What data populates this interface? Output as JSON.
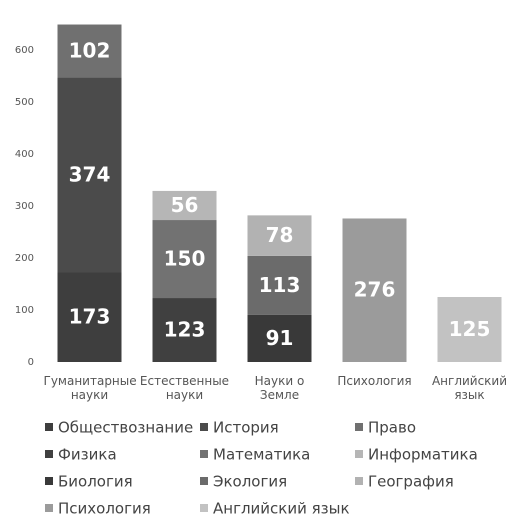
{
  "chart_data": {
    "type": "stacked_bar",
    "categories": [
      "Гуманитарные науки",
      "Естественные науки",
      "Науки о Земле",
      "Психология",
      "Английский язык"
    ],
    "series": [
      {
        "name": "Обществознание",
        "color": "#3e3e3e",
        "values": [
          173,
          null,
          null,
          null,
          null
        ]
      },
      {
        "name": "История",
        "color": "#4b4b4b",
        "values": [
          374,
          null,
          null,
          null,
          null
        ]
      },
      {
        "name": "Право",
        "color": "#707070",
        "values": [
          102,
          null,
          null,
          null,
          null
        ]
      },
      {
        "name": "Физика",
        "color": "#404040",
        "values": [
          null,
          123,
          null,
          null,
          null
        ]
      },
      {
        "name": "Математика",
        "color": "#727272",
        "values": [
          null,
          150,
          null,
          null,
          null
        ]
      },
      {
        "name": "Информатика",
        "color": "#b6b6b6",
        "values": [
          null,
          56,
          null,
          null,
          null
        ]
      },
      {
        "name": "Биология",
        "color": "#393939",
        "values": [
          null,
          null,
          91,
          null,
          null
        ]
      },
      {
        "name": "Экология",
        "color": "#6b6b6b",
        "values": [
          null,
          null,
          113,
          null,
          null
        ]
      },
      {
        "name": "География",
        "color": "#b2b2b2",
        "values": [
          null,
          null,
          78,
          null,
          null
        ]
      },
      {
        "name": "Психология",
        "color": "#9b9b9b",
        "values": [
          null,
          null,
          null,
          276,
          null
        ]
      },
      {
        "name": "Английский язык",
        "color": "#c2c2c2",
        "values": [
          null,
          null,
          null,
          null,
          125
        ]
      }
    ],
    "ylim": [
      0,
      650
    ],
    "yticks": [
      0,
      100,
      200,
      300,
      400,
      500,
      600
    ],
    "grid": false,
    "legend": "bottom"
  }
}
